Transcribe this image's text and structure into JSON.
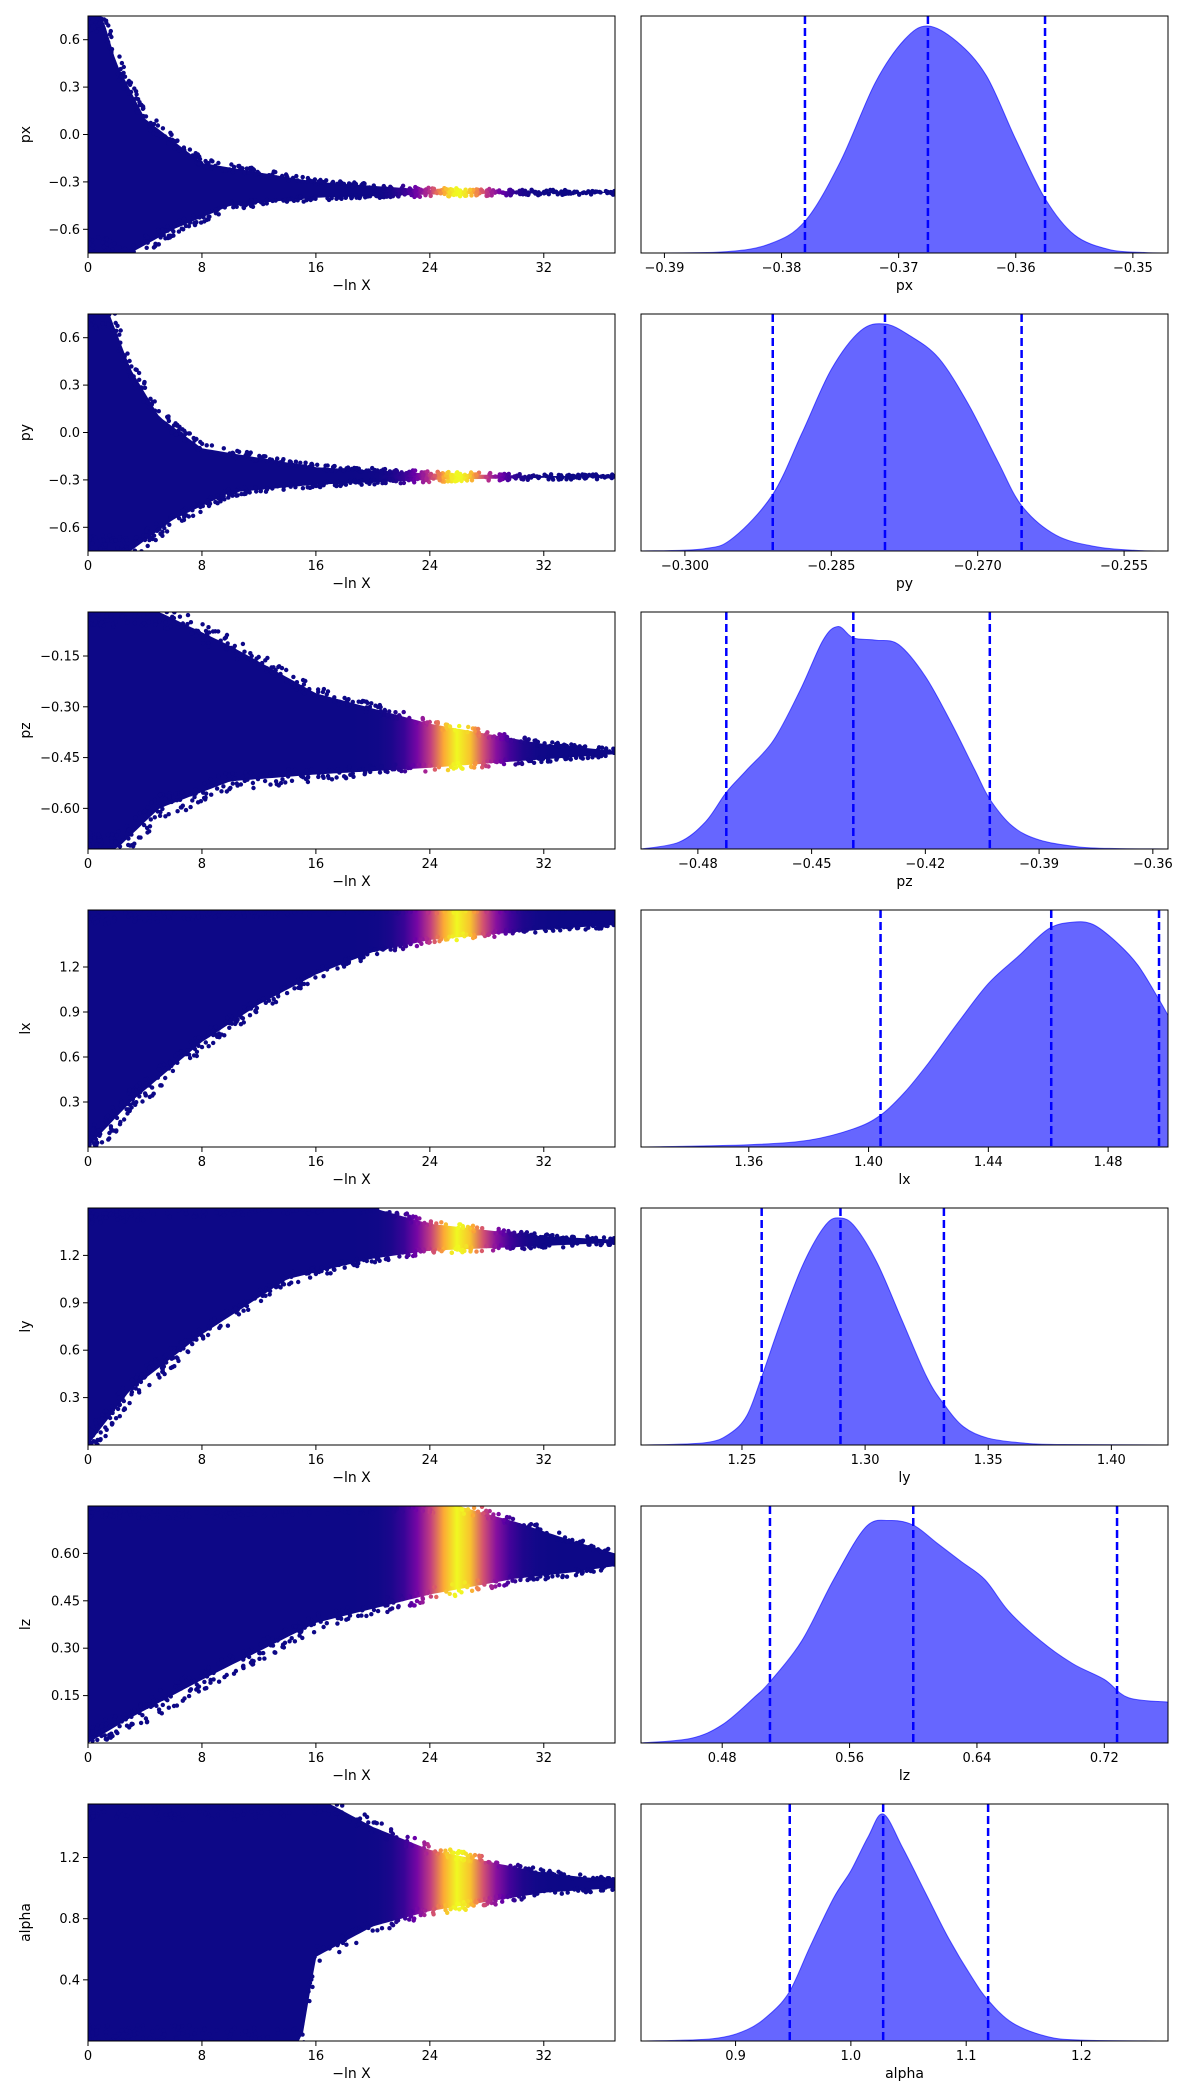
{
  "chart_data": [
    {
      "type": "scatter",
      "param": "px",
      "xlabel": "−ln X",
      "ylabel": "px",
      "xlim": [
        0,
        37
      ],
      "ylim": [
        -0.75,
        0.75
      ],
      "xticks": [
        0,
        8,
        16,
        24,
        32
      ],
      "yticks": [
        0.6,
        0.3,
        0.0,
        -0.3,
        -0.6
      ],
      "ytick_labels": [
        "0.6",
        "0.3",
        "0.0",
        "−0.3",
        "−0.6"
      ],
      "converge_value": -0.367,
      "colormap": "plasma",
      "envelope": [
        [
          0,
          0.75
        ],
        [
          1,
          0.75
        ],
        [
          2,
          0.45
        ],
        [
          4,
          0.1
        ],
        [
          8,
          -0.18
        ],
        [
          16,
          -0.3
        ],
        [
          24,
          -0.35
        ],
        [
          32,
          -0.362
        ],
        [
          37,
          -0.365
        ]
      ],
      "envelope_low": [
        [
          0,
          -0.75
        ],
        [
          3,
          -0.75
        ],
        [
          6,
          -0.6
        ],
        [
          10,
          -0.45
        ],
        [
          16,
          -0.4
        ],
        [
          24,
          -0.38
        ],
        [
          32,
          -0.372
        ],
        [
          37,
          -0.37
        ]
      ]
    },
    {
      "type": "area",
      "param": "px",
      "xlabel": "px",
      "xlim": [
        -0.392,
        -0.347
      ],
      "xticks": [
        -0.39,
        -0.38,
        -0.37,
        -0.36,
        -0.35
      ],
      "xtick_labels": [
        "−0.39",
        "−0.38",
        "−0.37",
        "−0.36",
        "−0.35"
      ],
      "quantiles": [
        -0.378,
        -0.3675,
        -0.3575
      ],
      "fill_color": "#0000ff",
      "line_color": "#0000ff",
      "density_x": [
        -0.392,
        -0.385,
        -0.381,
        -0.378,
        -0.375,
        -0.372,
        -0.3695,
        -0.3675,
        -0.365,
        -0.3625,
        -0.36,
        -0.3575,
        -0.355,
        -0.352,
        -0.349,
        -0.347
      ],
      "density_y": [
        0,
        0.005,
        0.04,
        0.14,
        0.4,
        0.75,
        0.94,
        1.0,
        0.93,
        0.78,
        0.5,
        0.24,
        0.08,
        0.015,
        0.002,
        0
      ]
    },
    {
      "type": "scatter",
      "param": "py",
      "xlabel": "−ln X",
      "ylabel": "py",
      "xlim": [
        0,
        37
      ],
      "ylim": [
        -0.75,
        0.75
      ],
      "xticks": [
        0,
        8,
        16,
        24,
        32
      ],
      "yticks": [
        0.6,
        0.3,
        0.0,
        -0.3,
        -0.6
      ],
      "ytick_labels": [
        "0.6",
        "0.3",
        "0.0",
        "−0.3",
        "−0.6"
      ],
      "converge_value": -0.28,
      "colormap": "plasma",
      "envelope": [
        [
          0,
          0.75
        ],
        [
          1.5,
          0.75
        ],
        [
          3,
          0.4
        ],
        [
          5,
          0.1
        ],
        [
          8,
          -0.1
        ],
        [
          16,
          -0.22
        ],
        [
          24,
          -0.26
        ],
        [
          32,
          -0.275
        ],
        [
          37,
          -0.277
        ]
      ],
      "envelope_low": [
        [
          0,
          -0.75
        ],
        [
          3,
          -0.75
        ],
        [
          6,
          -0.55
        ],
        [
          10,
          -0.38
        ],
        [
          16,
          -0.33
        ],
        [
          24,
          -0.3
        ],
        [
          32,
          -0.287
        ],
        [
          37,
          -0.284
        ]
      ]
    },
    {
      "type": "area",
      "param": "py",
      "xlabel": "py",
      "xlim": [
        -0.3045,
        -0.2505
      ],
      "xticks": [
        -0.3,
        -0.285,
        -0.27,
        -0.255
      ],
      "xtick_labels": [
        "−0.300",
        "−0.285",
        "−0.270",
        "−0.255"
      ],
      "quantiles": [
        -0.291,
        -0.2795,
        -0.2655
      ],
      "fill_color": "#0000ff",
      "line_color": "#0000ff",
      "density_x": [
        -0.3045,
        -0.298,
        -0.295,
        -0.291,
        -0.288,
        -0.285,
        -0.282,
        -0.2795,
        -0.277,
        -0.274,
        -0.271,
        -0.268,
        -0.2655,
        -0.262,
        -0.258,
        -0.254,
        -0.2505
      ],
      "density_y": [
        0,
        0.01,
        0.06,
        0.25,
        0.52,
        0.8,
        0.97,
        1.0,
        0.95,
        0.85,
        0.65,
        0.4,
        0.2,
        0.07,
        0.02,
        0.003,
        0
      ]
    },
    {
      "type": "scatter",
      "param": "pz",
      "xlabel": "−ln X",
      "ylabel": "pz",
      "xlim": [
        0,
        37
      ],
      "ylim": [
        -0.72,
        -0.02
      ],
      "xticks": [
        0,
        8,
        16,
        24,
        32
      ],
      "yticks": [
        -0.15,
        -0.3,
        -0.45,
        -0.6
      ],
      "ytick_labels": [
        "−0.15",
        "−0.30",
        "−0.45",
        "−0.60"
      ],
      "converge_value": -0.435,
      "colormap": "plasma",
      "envelope": [
        [
          0,
          -0.02
        ],
        [
          5,
          -0.02
        ],
        [
          10,
          -0.12
        ],
        [
          16,
          -0.26
        ],
        [
          24,
          -0.35
        ],
        [
          32,
          -0.41
        ],
        [
          37,
          -0.43
        ]
      ],
      "envelope_low": [
        [
          0,
          -0.72
        ],
        [
          2,
          -0.72
        ],
        [
          5,
          -0.6
        ],
        [
          10,
          -0.52
        ],
        [
          16,
          -0.5
        ],
        [
          24,
          -0.48
        ],
        [
          32,
          -0.455
        ],
        [
          37,
          -0.44
        ]
      ]
    },
    {
      "type": "area",
      "param": "pz",
      "xlabel": "pz",
      "xlim": [
        -0.495,
        -0.356
      ],
      "xticks": [
        -0.48,
        -0.45,
        -0.42,
        -0.39,
        -0.36
      ],
      "xtick_labels": [
        "−0.48",
        "−0.45",
        "−0.42",
        "−0.39",
        "−0.36"
      ],
      "quantiles": [
        -0.4725,
        -0.439,
        -0.403
      ],
      "fill_color": "#0000ff",
      "line_color": "#0000ff",
      "density_x": [
        -0.495,
        -0.485,
        -0.478,
        -0.4725,
        -0.467,
        -0.46,
        -0.453,
        -0.447,
        -0.443,
        -0.439,
        -0.433,
        -0.427,
        -0.42,
        -0.413,
        -0.407,
        -0.403,
        -0.397,
        -0.39,
        -0.38,
        -0.37,
        -0.356
      ],
      "density_y": [
        0,
        0.03,
        0.12,
        0.25,
        0.35,
        0.48,
        0.7,
        0.92,
        0.98,
        0.93,
        0.92,
        0.9,
        0.76,
        0.55,
        0.35,
        0.22,
        0.1,
        0.04,
        0.01,
        0.002,
        0
      ]
    },
    {
      "type": "scatter",
      "param": "lx",
      "xlabel": "−ln X",
      "ylabel": "lx",
      "xlim": [
        0,
        37
      ],
      "ylim": [
        0,
        1.58
      ],
      "xticks": [
        0,
        8,
        16,
        24,
        32
      ],
      "yticks": [
        1.2,
        0.9,
        0.6,
        0.3
      ],
      "ytick_labels": [
        "1.2",
        "0.9",
        "0.6",
        "0.3"
      ],
      "converge_value": 1.48,
      "colormap": "plasma",
      "envelope": [
        [
          0,
          1.58
        ],
        [
          37,
          1.58
        ]
      ],
      "envelope_low": [
        [
          0,
          0
        ],
        [
          3,
          0.3
        ],
        [
          8,
          0.7
        ],
        [
          12,
          0.95
        ],
        [
          16,
          1.15
        ],
        [
          20,
          1.3
        ],
        [
          24,
          1.38
        ],
        [
          32,
          1.45
        ],
        [
          37,
          1.48
        ]
      ]
    },
    {
      "type": "area",
      "param": "lx",
      "xlabel": "lx",
      "xlim": [
        1.324,
        1.5
      ],
      "xticks": [
        1.36,
        1.4,
        1.44,
        1.48
      ],
      "xtick_labels": [
        "1.36",
        "1.40",
        "1.44",
        "1.48"
      ],
      "quantiles": [
        1.404,
        1.461,
        1.497
      ],
      "fill_color": "#0000ff",
      "line_color": "#0000ff",
      "density_x": [
        1.324,
        1.36,
        1.38,
        1.395,
        1.404,
        1.412,
        1.42,
        1.43,
        1.44,
        1.45,
        1.46,
        1.468,
        1.475,
        1.483,
        1.49,
        1.497,
        1.5
      ],
      "density_y": [
        0,
        0.01,
        0.03,
        0.08,
        0.14,
        0.24,
        0.37,
        0.55,
        0.72,
        0.84,
        0.96,
        0.99,
        0.98,
        0.9,
        0.8,
        0.65,
        0.58
      ]
    },
    {
      "type": "scatter",
      "param": "ly",
      "xlabel": "−ln X",
      "ylabel": "ly",
      "xlim": [
        0,
        37
      ],
      "ylim": [
        0,
        1.5
      ],
      "xticks": [
        0,
        8,
        16,
        24,
        32
      ],
      "yticks": [
        1.2,
        0.9,
        0.6,
        0.3
      ],
      "ytick_labels": [
        "1.2",
        "0.9",
        "0.6",
        "0.3"
      ],
      "converge_value": 1.28,
      "colormap": "plasma",
      "envelope": [
        [
          0,
          1.5
        ],
        [
          20,
          1.5
        ],
        [
          24,
          1.4
        ],
        [
          32,
          1.32
        ],
        [
          37,
          1.3
        ]
      ],
      "envelope_low": [
        [
          0,
          0
        ],
        [
          3,
          0.35
        ],
        [
          8,
          0.7
        ],
        [
          14,
          1.05
        ],
        [
          20,
          1.18
        ],
        [
          24,
          1.23
        ],
        [
          32,
          1.26
        ],
        [
          37,
          1.28
        ]
      ]
    },
    {
      "type": "area",
      "param": "ly",
      "xlabel": "ly",
      "xlim": [
        1.209,
        1.423
      ],
      "xticks": [
        1.25,
        1.3,
        1.35,
        1.4
      ],
      "xtick_labels": [
        "1.25",
        "1.30",
        "1.35",
        "1.40"
      ],
      "quantiles": [
        1.258,
        1.29,
        1.332
      ],
      "fill_color": "#0000ff",
      "line_color": "#0000ff",
      "density_x": [
        1.209,
        1.235,
        1.245,
        1.252,
        1.258,
        1.266,
        1.275,
        1.284,
        1.29,
        1.296,
        1.305,
        1.315,
        1.325,
        1.332,
        1.34,
        1.35,
        1.365,
        1.38,
        1.423
      ],
      "density_y": [
        0,
        0.01,
        0.05,
        0.13,
        0.3,
        0.55,
        0.8,
        0.97,
        1.0,
        0.96,
        0.8,
        0.55,
        0.3,
        0.18,
        0.08,
        0.03,
        0.008,
        0.002,
        0
      ]
    },
    {
      "type": "scatter",
      "param": "lz",
      "xlabel": "−ln X",
      "ylabel": "lz",
      "xlim": [
        0,
        37
      ],
      "ylim": [
        0,
        0.75
      ],
      "xticks": [
        0,
        8,
        16,
        24,
        32
      ],
      "yticks": [
        0.6,
        0.45,
        0.3,
        0.15
      ],
      "ytick_labels": [
        "0.60",
        "0.45",
        "0.30",
        "0.15"
      ],
      "converge_value": 0.58,
      "colormap": "plasma",
      "envelope": [
        [
          0,
          0.75
        ],
        [
          26,
          0.75
        ],
        [
          30,
          0.7
        ],
        [
          34,
          0.64
        ],
        [
          37,
          0.6
        ]
      ],
      "envelope_low": [
        [
          0,
          0
        ],
        [
          3,
          0.08
        ],
        [
          8,
          0.2
        ],
        [
          16,
          0.38
        ],
        [
          24,
          0.47
        ],
        [
          30,
          0.52
        ],
        [
          34,
          0.54
        ],
        [
          37,
          0.56
        ]
      ]
    },
    {
      "type": "area",
      "param": "lz",
      "xlabel": "lz",
      "xlim": [
        0.429,
        0.76
      ],
      "xticks": [
        0.48,
        0.56,
        0.64,
        0.72
      ],
      "xtick_labels": [
        "0.48",
        "0.56",
        "0.64",
        "0.72"
      ],
      "quantiles": [
        0.51,
        0.6,
        0.728
      ],
      "fill_color": "#0000ff",
      "line_color": "#0000ff",
      "density_x": [
        0.429,
        0.46,
        0.48,
        0.5,
        0.51,
        0.53,
        0.55,
        0.57,
        0.585,
        0.6,
        0.615,
        0.63,
        0.645,
        0.66,
        0.68,
        0.7,
        0.72,
        0.735,
        0.76
      ],
      "density_y": [
        0,
        0.02,
        0.08,
        0.2,
        0.27,
        0.45,
        0.72,
        0.95,
        0.98,
        0.96,
        0.88,
        0.8,
        0.72,
        0.58,
        0.45,
        0.35,
        0.28,
        0.2,
        0.18
      ]
    },
    {
      "type": "scatter",
      "param": "alpha",
      "xlabel": "−ln X",
      "ylabel": "alpha",
      "xlim": [
        0,
        37
      ],
      "ylim": [
        0,
        1.55
      ],
      "xticks": [
        0,
        8,
        16,
        24,
        32
      ],
      "yticks": [
        1.2,
        0.8,
        0.4
      ],
      "ytick_labels": [
        "1.2",
        "0.8",
        "0.4"
      ],
      "converge_value": 1.02,
      "colormap": "plasma",
      "envelope": [
        [
          0,
          1.55
        ],
        [
          17,
          1.55
        ],
        [
          20,
          1.4
        ],
        [
          24,
          1.25
        ],
        [
          32,
          1.1
        ],
        [
          37,
          1.05
        ]
      ],
      "envelope_low": [
        [
          0,
          0
        ],
        [
          15,
          0
        ],
        [
          16,
          0.55
        ],
        [
          20,
          0.75
        ],
        [
          24,
          0.85
        ],
        [
          32,
          0.97
        ],
        [
          37,
          1.0
        ]
      ]
    },
    {
      "type": "area",
      "param": "alpha",
      "xlabel": "alpha",
      "xlim": [
        0.818,
        1.275
      ],
      "xticks": [
        0.9,
        1.0,
        1.1,
        1.2
      ],
      "xtick_labels": [
        "0.9",
        "1.0",
        "1.1",
        "1.2"
      ],
      "quantiles": [
        0.947,
        1.028,
        1.119
      ],
      "fill_color": "#0000ff",
      "line_color": "#0000ff",
      "density_x": [
        0.818,
        0.88,
        0.91,
        0.93,
        0.947,
        0.965,
        0.985,
        1.0,
        1.015,
        1.028,
        1.045,
        1.065,
        1.085,
        1.105,
        1.119,
        1.14,
        1.17,
        1.2,
        1.275
      ],
      "density_y": [
        0,
        0.01,
        0.05,
        0.12,
        0.22,
        0.42,
        0.63,
        0.75,
        0.9,
        1.0,
        0.85,
        0.65,
        0.45,
        0.28,
        0.18,
        0.08,
        0.02,
        0.004,
        0
      ]
    }
  ]
}
